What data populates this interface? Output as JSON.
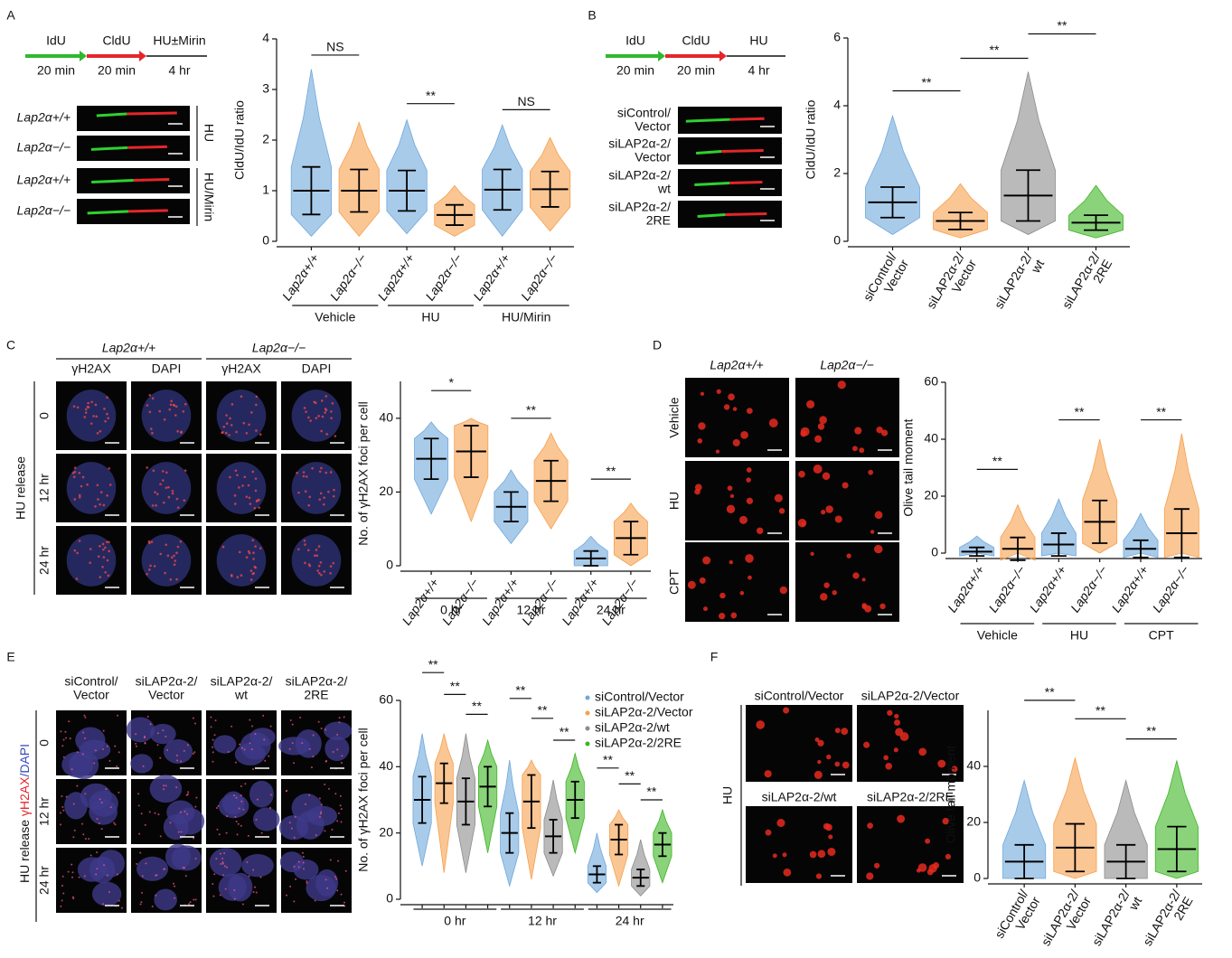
{
  "figure": {
    "panels": [
      "A",
      "B",
      "C",
      "D",
      "E",
      "F"
    ],
    "a": {
      "steps": [
        "IdU",
        "CldU",
        "HU±Mirin"
      ],
      "durations": [
        "20 min",
        "20 min",
        "4 hr"
      ],
      "rows": [
        "Lap2α+/+",
        "Lap2α−/−",
        "Lap2α+/+",
        "Lap2α−/−"
      ],
      "treatments": [
        "HU",
        "HU/Mirin"
      ]
    },
    "b": {
      "steps": [
        "IdU",
        "CldU",
        "HU"
      ],
      "durations": [
        "20 min",
        "20 min",
        "4 hr"
      ],
      "rows": [
        "siControl/Vector",
        "siLAP2α-2/Vector",
        "siLAP2α-2/wt",
        "siLAP2α-2/2RE"
      ]
    },
    "c": {
      "genotypes": [
        "Lap2α+/+",
        "Lap2α−/−"
      ],
      "stains": [
        "γH2AX",
        "DAPI",
        "γH2AX",
        "DAPI"
      ],
      "times": [
        "0",
        "12 hr",
        "24 hr"
      ],
      "side": "HU release"
    },
    "d": {
      "genotypes": [
        "Lap2α+/+",
        "Lap2α−/−"
      ],
      "treatments": [
        "Vehicle",
        "HU",
        "CPT"
      ]
    },
    "e": {
      "columns": [
        "siControl/Vector",
        "siLAP2α-2/Vector",
        "siLAP2α-2/wt",
        "siLAP2α-2/2RE"
      ],
      "times": [
        "0",
        "12 hr",
        "24 hr"
      ],
      "side_prefix": "HU release ",
      "side_red": "γH2AX",
      "side_blue": "/DAPI"
    },
    "f": {
      "images": [
        "siControl/Vector",
        "siLAP2α-2/Vector",
        "siLAP2α-2/wt",
        "siLAP2α-2/2RE"
      ],
      "side": "HU"
    }
  },
  "chart_data": [
    {
      "type": "dot",
      "y_label": "CldU/IdU ratio",
      "ylim": [
        0,
        4
      ],
      "yticks": [
        0,
        1,
        2,
        3,
        4
      ],
      "categories": [
        "Lap2α+/+",
        "Lap2α−/−",
        "Lap2α+/+",
        "Lap2α−/−",
        "Lap2α+/+",
        "Lap2α−/−"
      ],
      "groups": [
        "Vehicle",
        "HU",
        "HU/Mirin"
      ],
      "colors": [
        "#6fa8dc",
        "#f6a04d",
        "#6fa8dc",
        "#f6a04d",
        "#6fa8dc",
        "#f6a04d"
      ],
      "values": [
        1.0,
        1.0,
        1.0,
        0.52,
        1.02,
        1.03
      ],
      "errors": [
        0.47,
        0.42,
        0.4,
        0.2,
        0.4,
        0.35
      ],
      "mins": [
        0.1,
        0.1,
        0.15,
        0.1,
        0.1,
        0.2
      ],
      "maxs": [
        3.4,
        2.35,
        2.4,
        1.1,
        2.3,
        2.05
      ],
      "significance": [
        "NS",
        "**",
        "NS"
      ]
    },
    {
      "type": "dot",
      "y_label": "CldU/IdU ratio",
      "ylim": [
        0,
        6
      ],
      "yticks": [
        0,
        2,
        4,
        6
      ],
      "categories": [
        "siControl/Vector",
        "siLAP2α-2/Vector",
        "siLAP2α-2/wt",
        "siLAP2α-2/2RE"
      ],
      "colors": [
        "#6fa8dc",
        "#f6a04d",
        "#8c8c8c",
        "#3cb521"
      ],
      "values": [
        1.15,
        0.6,
        1.35,
        0.55
      ],
      "errors": [
        0.45,
        0.25,
        0.75,
        0.22
      ],
      "mins": [
        0.2,
        0.1,
        0.2,
        0.1
      ],
      "maxs": [
        3.7,
        1.7,
        5.0,
        1.65
      ],
      "significance": [
        "**",
        "**",
        "**"
      ]
    },
    {
      "type": "dot",
      "y_label": "No. of γH2AX foci per cell",
      "ylim": [
        0,
        50
      ],
      "yticks": [
        0,
        20,
        40
      ],
      "categories": [
        "Lap2α+/+",
        "Lap2α−/−",
        "Lap2α+/+",
        "Lap2α−/−",
        "Lap2α+/+",
        "Lap2α−/−"
      ],
      "groups": [
        "0 hr",
        "12 hr",
        "24 hr"
      ],
      "colors": [
        "#6fa8dc",
        "#f6a04d",
        "#6fa8dc",
        "#f6a04d",
        "#6fa8dc",
        "#f6a04d"
      ],
      "values": [
        29,
        31,
        16,
        23,
        2,
        7.5
      ],
      "errors": [
        5.5,
        7,
        4,
        5.5,
        2,
        4.5
      ],
      "mins": [
        14,
        12,
        6,
        10,
        0,
        0
      ],
      "maxs": [
        39,
        40,
        26,
        36,
        8,
        17
      ],
      "significance": [
        "*",
        "**",
        "**"
      ]
    },
    {
      "type": "dot",
      "y_label": "Olive tail moment",
      "ylim": [
        0,
        60
      ],
      "yticks": [
        0,
        20,
        40,
        60
      ],
      "categories": [
        "Lap2α+/+",
        "Lap2α−/−",
        "Lap2α+/+",
        "Lap2α−/−",
        "Lap2α+/+",
        "Lap2α−/−"
      ],
      "groups": [
        "Vehicle",
        "HU",
        "CPT"
      ],
      "colors": [
        "#6fa8dc",
        "#f6a04d",
        "#6fa8dc",
        "#f6a04d",
        "#6fa8dc",
        "#f6a04d"
      ],
      "values": [
        0.5,
        1.5,
        3,
        11,
        1.5,
        7
      ],
      "errors": [
        1.5,
        4,
        4,
        7.5,
        3,
        8.5
      ],
      "mins": [
        0,
        0,
        0,
        0,
        0,
        0
      ],
      "maxs": [
        6,
        17,
        19,
        40,
        14,
        42
      ],
      "significance": [
        "**",
        "**",
        "**"
      ]
    },
    {
      "type": "dot",
      "y_label": "No. of γH2AX foci per cell",
      "ylim": [
        0,
        60
      ],
      "yticks": [
        0,
        20,
        40,
        60
      ],
      "categories": [
        "0 hr",
        "12 hr",
        "24 hr"
      ],
      "legend": "top-right",
      "series": [
        {
          "name": "siControl/Vector",
          "color": "#6fa8dc",
          "values": [
            30,
            20,
            7.5
          ],
          "errors": [
            7,
            6,
            2.5
          ],
          "mins": [
            10,
            4,
            2
          ],
          "maxs": [
            50,
            42,
            20
          ]
        },
        {
          "name": "siLAP2α-2/Vector",
          "color": "#f6a04d",
          "values": [
            35,
            29.5,
            18
          ],
          "errors": [
            6,
            8,
            4.5
          ],
          "mins": [
            8,
            6,
            4
          ],
          "maxs": [
            50,
            42,
            27
          ]
        },
        {
          "name": "siLAP2α-2/wt",
          "color": "#8c8c8c",
          "values": [
            29.5,
            19,
            6.5
          ],
          "errors": [
            7,
            5,
            2.5
          ],
          "mins": [
            8,
            7,
            1
          ],
          "maxs": [
            50,
            36,
            18
          ]
        },
        {
          "name": "siLAP2α-2/2RE",
          "color": "#3cb521",
          "values": [
            34,
            30,
            16.5
          ],
          "errors": [
            6,
            5.5,
            3.5
          ],
          "mins": [
            14,
            14,
            5
          ],
          "maxs": [
            48,
            44,
            27
          ]
        }
      ],
      "significance": [
        "**",
        "**",
        "**",
        "**",
        "**",
        "**",
        "**",
        "**",
        "**"
      ]
    },
    {
      "type": "dot",
      "y_label": "Olive tail moment",
      "ylim": [
        0,
        60
      ],
      "yticks": [
        0,
        20,
        40
      ],
      "categories": [
        "siControl/Vector",
        "siLAP2α-2/Vector",
        "siLAP2α-2/wt",
        "siLAP2α-2/2RE"
      ],
      "colors": [
        "#6fa8dc",
        "#f6a04d",
        "#8c8c8c",
        "#3cb521"
      ],
      "values": [
        6,
        11,
        6,
        10.5
      ],
      "errors": [
        6,
        8.5,
        6,
        8
      ],
      "mins": [
        0,
        0,
        0,
        0
      ],
      "maxs": [
        35,
        43,
        35,
        42
      ],
      "significance": [
        "**",
        "**",
        "**"
      ]
    }
  ]
}
